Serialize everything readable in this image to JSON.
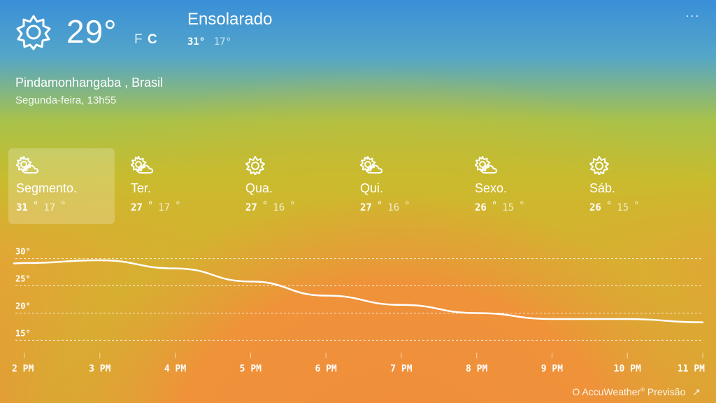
{
  "current": {
    "icon": "sun-icon",
    "temperature": "29°",
    "unit_f": "F",
    "unit_c": "C",
    "condition": "Ensolarado",
    "high": "31°",
    "low": "17°"
  },
  "menu_label": "···",
  "location": "Pindamonhangaba , Brasil",
  "datetime": "Segunda-feira, 13h55",
  "days": [
    {
      "name": "Segmento.",
      "icon": "partly-cloudy-icon",
      "high": "31",
      "low": "17",
      "selected": true
    },
    {
      "name": "Ter.",
      "icon": "partly-cloudy-icon",
      "high": "27",
      "low": "17"
    },
    {
      "name": "Qua.",
      "icon": "sun-icon",
      "high": "27",
      "low": "16"
    },
    {
      "name": "Qui.",
      "icon": "partly-cloudy-icon",
      "high": "27",
      "low": "16"
    },
    {
      "name": "Sexo.",
      "icon": "partly-cloudy-icon",
      "high": "26",
      "low": "15"
    },
    {
      "name": "Sáb.",
      "icon": "sun-icon",
      "high": "26",
      "low": "15"
    }
  ],
  "degree_symbol": "°",
  "chart_data": {
    "type": "line",
    "x": [
      "2 PM",
      "3 PM",
      "4 PM",
      "5 PM",
      "6 PM",
      "7 PM",
      "8 PM",
      "9 PM",
      "10 PM",
      "11 PM"
    ],
    "series": [
      {
        "values": [
          29.2,
          29.7,
          28.2,
          25.8,
          23.2,
          21.5,
          20.0,
          18.9,
          18.9,
          18.3
        ]
      }
    ],
    "ytick_labels": [
      "30°",
      "25°",
      "20°",
      "15°"
    ],
    "yticks": [
      30,
      25,
      20,
      15
    ],
    "ylim": [
      13.5,
      31.5
    ],
    "grid": true
  },
  "footer": {
    "text": "O AccuWeather",
    "reg": "®",
    "suffix": " Previsão",
    "arrow": "↗"
  }
}
